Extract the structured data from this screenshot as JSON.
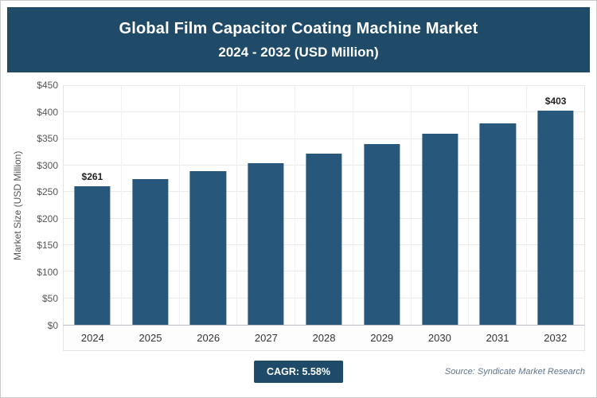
{
  "header": {
    "title_line1": "Global Film Capacitor Coating Machine Market",
    "title_line2": "2024 - 2032 (USD Million)"
  },
  "chart_data": {
    "type": "bar",
    "categories": [
      "2024",
      "2025",
      "2026",
      "2027",
      "2028",
      "2029",
      "2030",
      "2031",
      "2032"
    ],
    "values": [
      261,
      275,
      290,
      305,
      322,
      341,
      360,
      380,
      403
    ],
    "point_labels": [
      "$261",
      "",
      "",
      "",
      "",
      "",
      "",
      "",
      "$403"
    ],
    "title": "Global Film Capacitor Coating Machine Market 2024 - 2032 (USD Million)",
    "xlabel": "",
    "ylabel": "Market Size (USD Million)",
    "ylim": [
      0,
      450
    ],
    "ytick_step": 50,
    "ytick_labels": [
      "$0",
      "$50",
      "$100",
      "$150",
      "$200",
      "$250",
      "$300",
      "$350",
      "$400",
      "$450"
    ],
    "bar_color": "#27587B",
    "grid": true,
    "legend": "none"
  },
  "footer": {
    "cagr_label": "CAGR: 5.58%",
    "source": "Source: Syndicate Market Research"
  },
  "colors": {
    "header_bg": "#1F4B68",
    "bar": "#27587B",
    "badge_bg": "#1F4B68"
  }
}
